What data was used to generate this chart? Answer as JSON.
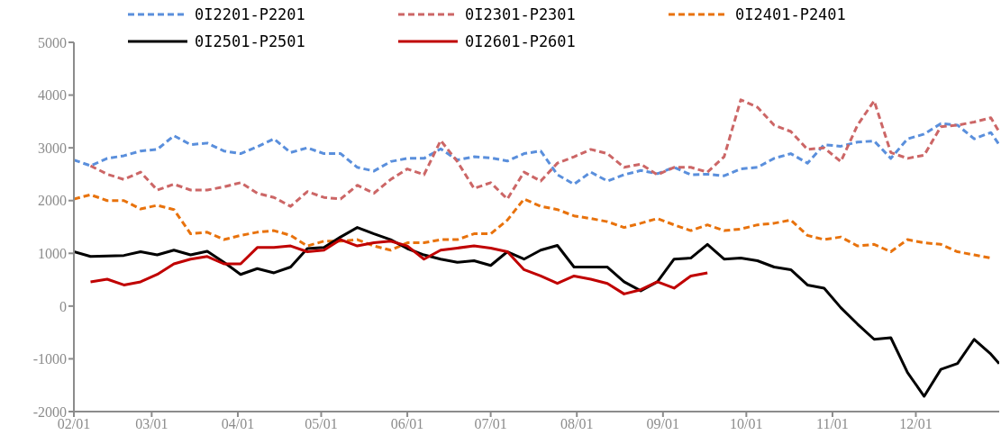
{
  "chart_data": {
    "type": "line",
    "x": [
      "--02-01",
      "--02-07",
      "--02-13",
      "--02-19",
      "--02-25",
      "--03-03",
      "--03-09",
      "--03-15",
      "--03-21",
      "--03-27",
      "--04-02",
      "--04-08",
      "--04-14",
      "--04-20",
      "--04-26",
      "--05-02",
      "--05-08",
      "--05-14",
      "--05-20",
      "--05-26",
      "--06-01",
      "--06-07",
      "--06-13",
      "--06-19",
      "--06-25",
      "--07-01",
      "--07-07",
      "--07-13",
      "--07-19",
      "--07-25",
      "--07-31",
      "--08-06",
      "--08-12",
      "--08-18",
      "--08-24",
      "--08-30",
      "--09-05",
      "--09-11",
      "--09-17",
      "--09-23",
      "--09-29",
      "--10-05",
      "--10-11",
      "--10-17",
      "--10-23",
      "--10-29",
      "--11-04",
      "--11-10",
      "--11-16",
      "--11-22",
      "--11-28",
      "--12-04",
      "--12-10",
      "--12-16",
      "--12-22",
      "--12-28",
      "--12-31"
    ],
    "series": [
      {
        "name": "0I2201-P2201",
        "color": "#5a8fdc",
        "line_style": "dashed",
        "values": [
          2770,
          2660,
          2800,
          2850,
          2940,
          2970,
          3230,
          3060,
          3090,
          2940,
          2890,
          3020,
          3170,
          2910,
          3000,
          2890,
          2890,
          2630,
          2560,
          2740,
          2800,
          2800,
          2980,
          2770,
          2830,
          2810,
          2750,
          2890,
          2940,
          2490,
          2310,
          2540,
          2370,
          2490,
          2570,
          2510,
          2630,
          2490,
          2500,
          2470,
          2600,
          2630,
          2800,
          2890,
          2710,
          3060,
          3030,
          3110,
          3130,
          2800,
          3170,
          3260,
          3460,
          3430,
          3170,
          3290,
          3060
        ]
      },
      {
        "name": "0I2301-P2301",
        "color": "#cc6666",
        "line_style": "dashed",
        "values": [
          null,
          2660,
          2500,
          2400,
          2540,
          2200,
          2310,
          2200,
          2200,
          2260,
          2340,
          2140,
          2060,
          1890,
          2170,
          2060,
          2030,
          2290,
          2140,
          2400,
          2600,
          2490,
          3140,
          2740,
          2230,
          2340,
          2030,
          2540,
          2370,
          2710,
          2830,
          2970,
          2890,
          2630,
          2690,
          2490,
          2630,
          2630,
          2540,
          2830,
          3910,
          3770,
          3430,
          3310,
          2970,
          3000,
          2740,
          3430,
          3890,
          2910,
          2800,
          2860,
          3400,
          3430,
          3490,
          3570,
          3300
        ]
      },
      {
        "name": "0I2401-P2401",
        "color": "#e8720c",
        "line_style": "dashed",
        "values": [
          2030,
          2110,
          2000,
          2000,
          1840,
          1910,
          1830,
          1370,
          1400,
          1260,
          1340,
          1400,
          1430,
          1340,
          1140,
          1230,
          1230,
          1260,
          1140,
          1060,
          1200,
          1200,
          1260,
          1260,
          1370,
          1370,
          1630,
          2030,
          1890,
          1830,
          1710,
          1660,
          1600,
          1490,
          1570,
          1660,
          1540,
          1430,
          1540,
          1430,
          1460,
          1540,
          1570,
          1630,
          1340,
          1260,
          1310,
          1140,
          1170,
          1030,
          1260,
          1200,
          1170,
          1030,
          970,
          910,
          null
        ]
      },
      {
        "name": "0I2501-P2501",
        "color": "#000000",
        "line_style": "solid",
        "values": [
          1030,
          940,
          950,
          960,
          1030,
          970,
          1060,
          970,
          1040,
          830,
          600,
          710,
          630,
          740,
          1090,
          1110,
          1310,
          1490,
          1370,
          1260,
          1090,
          970,
          890,
          830,
          860,
          770,
          1030,
          890,
          1060,
          1150,
          740,
          740,
          740,
          460,
          290,
          460,
          890,
          910,
          1170,
          890,
          910,
          860,
          740,
          690,
          400,
          340,
          -30,
          -340,
          -630,
          -600,
          -1260,
          -1710,
          -1200,
          -1090,
          -630,
          -910,
          -1090
        ]
      },
      {
        "name": "0I2601-P2601",
        "color": "#c00000",
        "line_style": "solid",
        "values": [
          null,
          460,
          510,
          400,
          460,
          600,
          800,
          890,
          940,
          800,
          800,
          1110,
          1110,
          1140,
          1030,
          1060,
          1260,
          1140,
          1200,
          1230,
          1140,
          890,
          1060,
          1100,
          1140,
          1100,
          1030,
          690,
          570,
          430,
          570,
          510,
          430,
          230,
          310,
          460,
          340,
          570,
          630,
          null,
          null,
          null,
          null,
          null,
          null,
          null,
          null,
          null,
          null,
          null,
          null,
          null,
          null,
          null,
          null,
          null,
          null
        ]
      }
    ],
    "xlim": [
      "--02-01",
      "--12-31"
    ],
    "xticks": [
      {
        "value": "--02-01",
        "label": "02/01"
      },
      {
        "value": "--03-01",
        "label": "03/01"
      },
      {
        "value": "--04-01",
        "label": "04/01"
      },
      {
        "value": "--05-01",
        "label": "05/01"
      },
      {
        "value": "--06-01",
        "label": "06/01"
      },
      {
        "value": "--07-01",
        "label": "07/01"
      },
      {
        "value": "--08-01",
        "label": "08/01"
      },
      {
        "value": "--09-01",
        "label": "09/01"
      },
      {
        "value": "--10-01",
        "label": "10/01"
      },
      {
        "value": "--11-01",
        "label": "11/01"
      },
      {
        "value": "--12-01",
        "label": "12/01"
      }
    ],
    "ylim": [
      -2000,
      5000
    ],
    "yticks": [
      -2000,
      -1000,
      0,
      1000,
      2000,
      3000,
      4000,
      5000
    ],
    "grid": false,
    "legend": "top",
    "marker": "none"
  }
}
